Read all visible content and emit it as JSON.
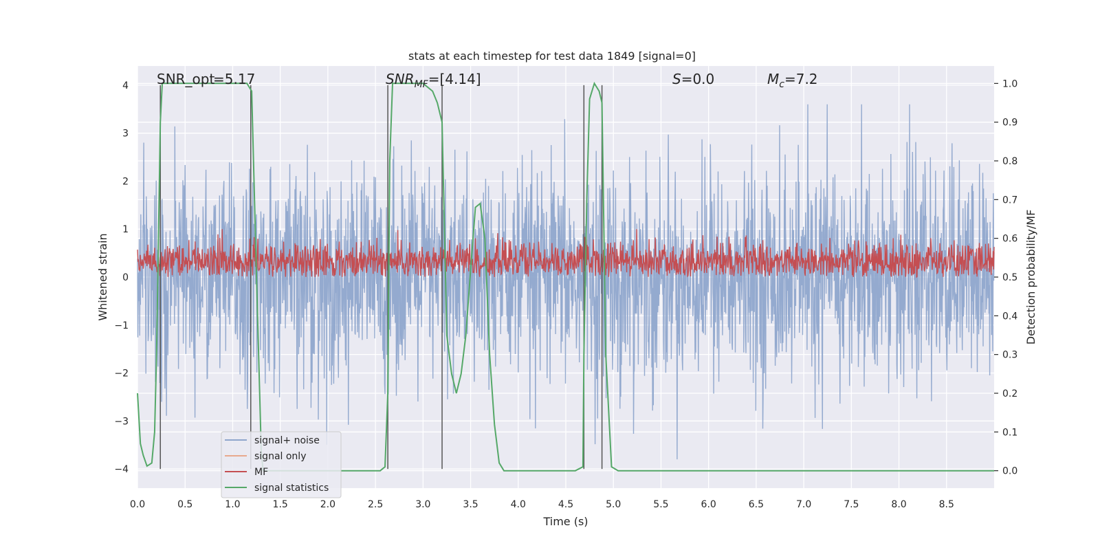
{
  "chart_data": {
    "type": "line",
    "title": "stats at each timestep for test data 1849 [signal=0]",
    "xlabel": "Time (s)",
    "ylabel": "Whitened strain",
    "y2label": "Detection probability/MF",
    "xlim": [
      0.0,
      9.0
    ],
    "ylim": [
      -4.4,
      4.4
    ],
    "y2lim": [
      -0.045,
      1.045
    ],
    "xticks": [
      "0.0",
      "0.5",
      "1.0",
      "1.5",
      "2.0",
      "2.5",
      "3.0",
      "3.5",
      "4.0",
      "4.5",
      "5.0",
      "5.5",
      "6.0",
      "6.5",
      "7.0",
      "7.5",
      "8.0",
      "8.5"
    ],
    "yticks": [
      "−4",
      "−3",
      "−2",
      "−1",
      "0",
      "1",
      "2",
      "3",
      "4"
    ],
    "y2ticks": [
      "0.0",
      "0.1",
      "0.2",
      "0.3",
      "0.4",
      "0.5",
      "0.6",
      "0.7",
      "0.8",
      "0.9",
      "1.0"
    ],
    "grid": true,
    "legend_position": "lower-left",
    "colors": {
      "background": "#eaeaf2",
      "grid": "#ffffff",
      "noise": "#8fa6cc",
      "signal_only": "#e8a98d",
      "mf": "#c44e52",
      "stats": "#55a868",
      "vline": "#555555"
    },
    "annotations": [
      {
        "label": "SNR_opt",
        "value": "=5.17"
      },
      {
        "label": "SNR_MF",
        "value": "=[4.14]"
      },
      {
        "label": "S",
        "value": "=0.0"
      },
      {
        "label": "M_c",
        "value": "=7.2"
      }
    ],
    "noise_band": {
      "typical_range": [
        -2.5,
        2.5
      ],
      "peak_range": [
        -3.8,
        3.6
      ],
      "samples_per_second": 260
    },
    "mf_band": {
      "typical_range": [
        0.0,
        0.75
      ],
      "peak": 1.0
    },
    "vertical_lines": [
      0.24,
      1.19,
      2.63,
      3.2,
      4.69,
      4.88
    ],
    "series": [
      {
        "name": "signal+ noise"
      },
      {
        "name": "signal only"
      },
      {
        "name": "MF"
      },
      {
        "name": "signal statistics",
        "axis": "right",
        "x": [
          0.0,
          0.03,
          0.06,
          0.1,
          0.12,
          0.15,
          0.18,
          0.2,
          0.22,
          0.24,
          0.26,
          0.28,
          0.3,
          0.35,
          0.5,
          0.8,
          1.0,
          1.1,
          1.15,
          1.2,
          1.25,
          1.3,
          1.32,
          1.4,
          1.6,
          2.0,
          2.5,
          2.55,
          2.6,
          2.63,
          2.65,
          2.68,
          2.7,
          2.8,
          3.0,
          3.1,
          3.15,
          3.2,
          3.25,
          3.3,
          3.35,
          3.4,
          3.45,
          3.5,
          3.55,
          3.6,
          3.65,
          3.7,
          3.75,
          3.8,
          3.85,
          3.9,
          4.2,
          4.6,
          4.68,
          4.69,
          4.72,
          4.75,
          4.8,
          4.85,
          4.88,
          4.92,
          4.98,
          5.05,
          5.5,
          6.0,
          7.0,
          8.0,
          9.0
        ],
        "y": [
          0.2,
          0.07,
          0.04,
          0.012,
          0.015,
          0.02,
          0.1,
          0.3,
          0.6,
          0.9,
          1.0,
          1.0,
          1.0,
          1.0,
          1.0,
          1.0,
          1.0,
          1.0,
          1.0,
          0.98,
          0.5,
          0.05,
          0.0,
          0.0,
          0.0,
          0.0,
          0.0,
          0.0,
          0.01,
          0.2,
          0.8,
          1.0,
          1.0,
          1.0,
          1.0,
          0.98,
          0.95,
          0.9,
          0.35,
          0.25,
          0.2,
          0.25,
          0.35,
          0.52,
          0.68,
          0.69,
          0.6,
          0.3,
          0.12,
          0.02,
          0.0,
          0.0,
          0.0,
          0.0,
          0.01,
          0.3,
          0.7,
          0.96,
          1.0,
          0.98,
          0.95,
          0.3,
          0.01,
          0.0,
          0.0,
          0.0,
          0.0,
          0.0,
          0.0
        ]
      }
    ]
  }
}
